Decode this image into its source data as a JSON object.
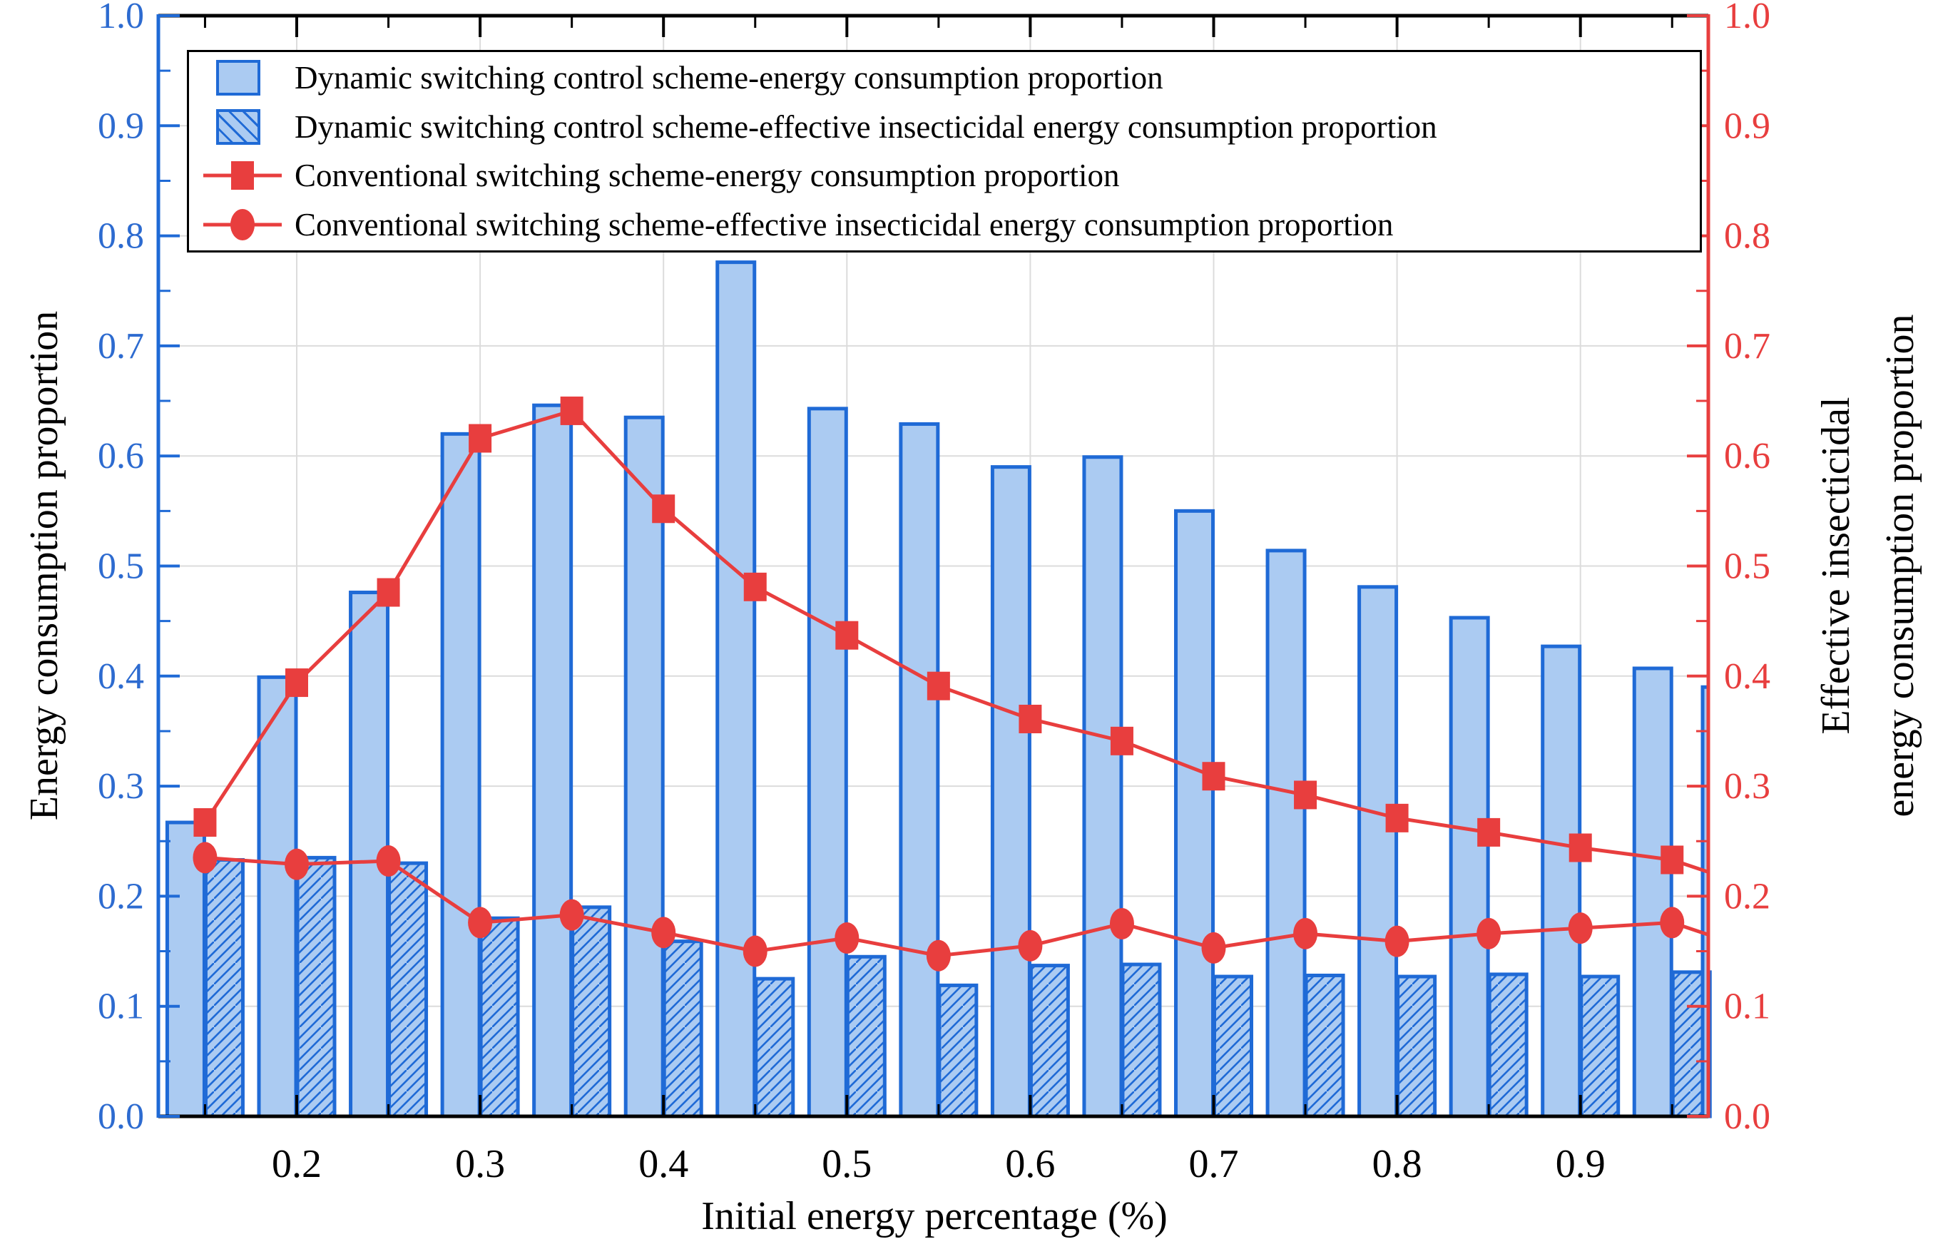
{
  "colors": {
    "bar_fill": "#abcbf2",
    "bar_edge": "#1f6ad6",
    "left_axis_blue": "#2d6bd0",
    "line_red": "#e83e3e",
    "grid_gray": "#dcdcdc",
    "spine_black": "#000000"
  },
  "legend": {
    "items": [
      {
        "swatch": "solid-blue-bar",
        "label": "Dynamic switching control scheme-energy consumption proportion"
      },
      {
        "swatch": "hatched-blue-bar",
        "label": "Dynamic switching control scheme-effective insecticidal energy consumption proportion"
      },
      {
        "swatch": "red-line-square-marker",
        "label": "Conventional switching scheme-energy consumption proportion"
      },
      {
        "swatch": "red-line-circle-marker",
        "label": "Conventional switching scheme-effective insecticidal energy consumption proportion"
      }
    ]
  },
  "axes": {
    "left": {
      "title": "Energy consumption proportion",
      "tick_labels": [
        "0.0",
        "0.1",
        "0.2",
        "0.3",
        "0.4",
        "0.5",
        "0.6",
        "0.7",
        "0.8",
        "0.9",
        "1.0"
      ],
      "tick_values": [
        0,
        0.1,
        0.2,
        0.3,
        0.4,
        0.5,
        0.6,
        0.7,
        0.8,
        0.9,
        1.0
      ],
      "minor_tick_values": [
        0.05,
        0.15,
        0.25,
        0.35,
        0.45,
        0.55,
        0.65,
        0.75,
        0.85,
        0.95
      ]
    },
    "right": {
      "title_line1": "Effective insecticidal",
      "title_line2": "energy consumption proportion",
      "tick_labels": [
        "0.0",
        "0.1",
        "0.2",
        "0.3",
        "0.4",
        "0.5",
        "0.6",
        "0.7",
        "0.8",
        "0.9",
        "1.0"
      ],
      "tick_values": [
        0,
        0.1,
        0.2,
        0.3,
        0.4,
        0.5,
        0.6,
        0.7,
        0.8,
        0.9,
        1.0
      ],
      "minor_tick_values": [
        0.05,
        0.15,
        0.25,
        0.35,
        0.45,
        0.55,
        0.65,
        0.75,
        0.85,
        0.95
      ]
    },
    "x": {
      "title": "Initial energy percentage (%)",
      "tick_labels": [
        "0.2",
        "0.3",
        "0.4",
        "0.5",
        "0.6",
        "0.7",
        "0.8",
        "0.9"
      ],
      "tick_values": [
        0.2,
        0.3,
        0.4,
        0.5,
        0.6,
        0.7,
        0.8,
        0.9
      ],
      "minor_tick_values": [
        0.15,
        0.25,
        0.35,
        0.45,
        0.55,
        0.65,
        0.75,
        0.85,
        0.95
      ]
    }
  },
  "chart_data": {
    "type": "bar",
    "subtype": "dual-axis bars + marker lines",
    "categories": [
      0.15,
      0.2,
      0.25,
      0.3,
      0.35,
      0.4,
      0.45,
      0.5,
      0.55,
      0.6,
      0.65,
      0.7,
      0.75,
      0.8,
      0.85,
      0.9,
      0.95
    ],
    "series": [
      {
        "name": "Dynamic switching control scheme-energy consumption proportion",
        "type": "bar",
        "style": "solid",
        "values": [
          0.267,
          0.399,
          0.476,
          0.62,
          0.646,
          0.635,
          0.776,
          0.643,
          0.629,
          0.59,
          0.599,
          0.55,
          0.514,
          0.481,
          0.453,
          0.427,
          0.407
        ]
      },
      {
        "name": "Dynamic switching control scheme-effective insecticidal energy consumption proportion",
        "type": "bar",
        "style": "hatched",
        "values": [
          0.233,
          0.235,
          0.23,
          0.18,
          0.19,
          0.159,
          0.125,
          0.145,
          0.119,
          0.137,
          0.138,
          0.127,
          0.128,
          0.127,
          0.129,
          0.127,
          0.131
        ]
      },
      {
        "name": "Conventional switching scheme-energy consumption proportion",
        "type": "line",
        "marker": "square",
        "values": [
          0.267,
          0.394,
          0.476,
          0.616,
          0.641,
          0.552,
          0.481,
          0.437,
          0.391,
          0.361,
          0.341,
          0.309,
          0.292,
          0.271,
          0.258,
          0.244,
          0.233
        ]
      },
      {
        "name": "Conventional switching scheme-effective insecticidal energy consumption proportion",
        "type": "line",
        "marker": "circle",
        "values": [
          0.235,
          0.229,
          0.232,
          0.176,
          0.183,
          0.167,
          0.15,
          0.162,
          0.146,
          0.155,
          0.175,
          0.153,
          0.166,
          0.159,
          0.166,
          0.171,
          0.176
        ]
      }
    ],
    "xlabel": "Initial energy percentage (%)",
    "ylabel_left": "Energy consumption proportion",
    "ylabel_right": "Effective insecticidal energy consumption proportion",
    "xlim": [
      0.125,
      0.97
    ],
    "ylim": [
      0.0,
      1.0
    ],
    "grid": true,
    "legend_position": "upper area, full-width framed box",
    "right_edge_clip": {
      "x": 0.97,
      "square_line_y": 0.222,
      "circle_line_y": 0.165,
      "clipped_bar_top": 0.39
    }
  }
}
